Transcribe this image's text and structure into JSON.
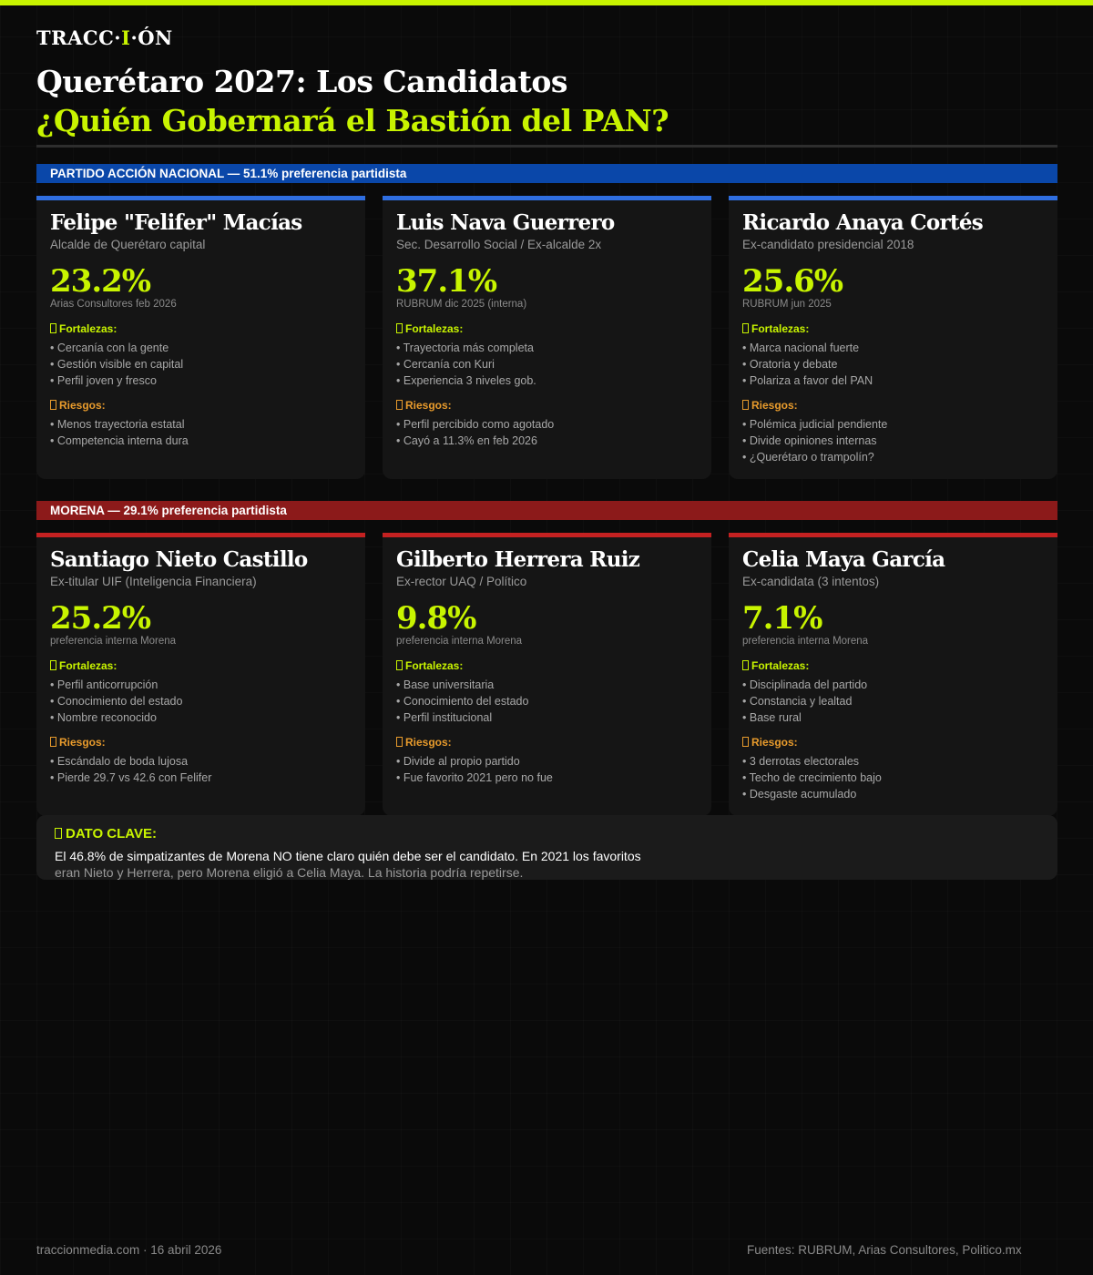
{
  "brand": {
    "logo_pre": "TRACC·",
    "logo_mid": "I",
    "logo_post": "·ÓN",
    "accent_color": "#c8f400"
  },
  "header": {
    "title": "Querétaro 2027: Los Candidatos",
    "subtitle": "¿Quién Gobernará el Bastión del PAN?"
  },
  "labels": {
    "strengths": "Fortalezas:",
    "risks": "Riesgos:"
  },
  "parties": [
    {
      "banner": "PARTIDO ACCIÓN NACIONAL — 51.1% preferencia partidista",
      "color": "#0a47a9",
      "candidates": [
        {
          "name": "Felipe \"Felifer\" Macías",
          "role": "Alcalde de Querétaro capital",
          "pct": "23.2%",
          "source": "Arias Consultores feb 2026",
          "strengths": [
            "Cercanía con la gente",
            "Gestión visible en capital",
            "Perfil joven y fresco"
          ],
          "risks": [
            "Menos trayectoria estatal",
            "Competencia interna dura"
          ]
        },
        {
          "name": "Luis Nava Guerrero",
          "role": "Sec. Desarrollo Social / Ex-alcalde 2x",
          "pct": "37.1%",
          "source": "RUBRUM dic 2025 (interna)",
          "strengths": [
            "Trayectoria más completa",
            "Cercanía con Kuri",
            "Experiencia 3 niveles gob."
          ],
          "risks": [
            "Perfil percibido como agotado",
            "Cayó a 11.3% en feb 2026"
          ]
        },
        {
          "name": "Ricardo Anaya Cortés",
          "role": "Ex-candidato presidencial 2018",
          "pct": "25.6%",
          "source": "RUBRUM jun 2025",
          "strengths": [
            "Marca nacional fuerte",
            "Oratoria y debate",
            "Polariza a favor del PAN"
          ],
          "risks": [
            "Polémica judicial pendiente",
            "Divide opiniones internas",
            "¿Querétaro o trampolín?"
          ]
        }
      ]
    },
    {
      "banner": "MORENA — 29.1% preferencia partidista",
      "color": "#8c1a1a",
      "candidates": [
        {
          "name": "Santiago Nieto Castillo",
          "role": "Ex-titular UIF (Inteligencia Financiera)",
          "pct": "25.2%",
          "source": "preferencia interna Morena",
          "strengths": [
            "Perfil anticorrupción",
            "Conocimiento del estado",
            "Nombre reconocido"
          ],
          "risks": [
            "Escándalo de boda lujosa",
            "Pierde 29.7 vs 42.6 con Felifer"
          ]
        },
        {
          "name": "Gilberto Herrera Ruiz",
          "role": "Ex-rector UAQ / Político",
          "pct": "9.8%",
          "source": "preferencia interna Morena",
          "strengths": [
            "Base universitaria",
            "Conocimiento del estado",
            "Perfil institucional"
          ],
          "risks": [
            "Divide al propio partido",
            "Fue favorito 2021 pero no fue"
          ]
        },
        {
          "name": "Celia Maya García",
          "role": "Ex-candidata (3 intentos)",
          "pct": "7.1%",
          "source": "preferencia interna Morena",
          "strengths": [
            "Disciplinada del partido",
            "Constancia y lealtad",
            "Base rural"
          ],
          "risks": [
            "3 derrotas electorales",
            "Techo de crecimiento bajo",
            "Desgaste acumulado"
          ]
        }
      ]
    }
  ],
  "key_fact": {
    "heading": "DATO CLAVE:",
    "line1": "El 46.8% de simpatizantes de Morena NO tiene claro quién debe ser el candidato. En 2021 los favoritos",
    "line2": "eran Nieto y Herrera, pero Morena eligió a Celia Maya. La historia podría repetirse."
  },
  "footer": {
    "left": "traccionmedia.com · 16 abril 2026",
    "right": "Fuentes: RUBRUM, Arias Consultores, Politico.mx"
  }
}
